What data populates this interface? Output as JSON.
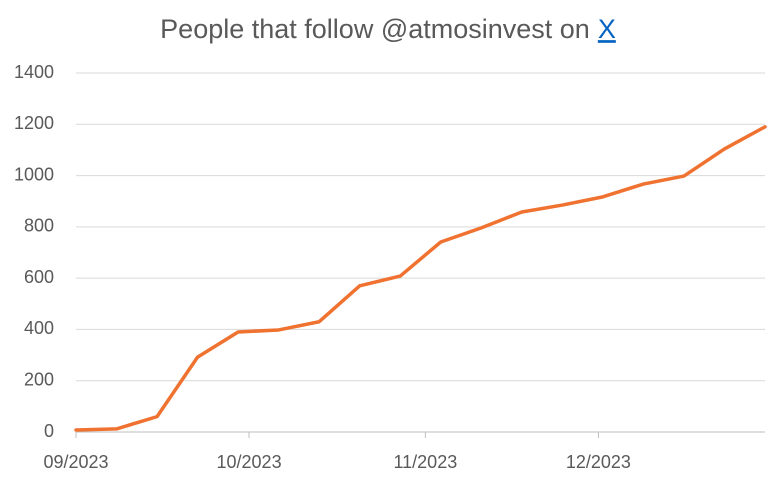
{
  "chart_data": {
    "type": "line",
    "title": "People that follow @atmosinvest on",
    "title_link": "X",
    "series": [
      {
        "name": null,
        "color": "#f07230",
        "values": [
          8,
          12,
          60,
          292,
          390,
          398,
          430,
          570,
          608,
          741,
          796,
          858,
          885,
          917,
          967,
          998,
          1104,
          1190
        ]
      }
    ],
    "xlim": [
      0,
      17
    ],
    "xticks": [
      {
        "value": 0,
        "label": "09/2023"
      },
      {
        "value": 4.27,
        "label": "10/2023"
      },
      {
        "value": 8.62,
        "label": "11/2023"
      },
      {
        "value": 12.89,
        "label": "12/2023"
      }
    ],
    "ylim": [
      0,
      1400
    ],
    "yticks": [
      0,
      200,
      400,
      600,
      800,
      1000,
      1200,
      1400
    ],
    "grid": true
  }
}
